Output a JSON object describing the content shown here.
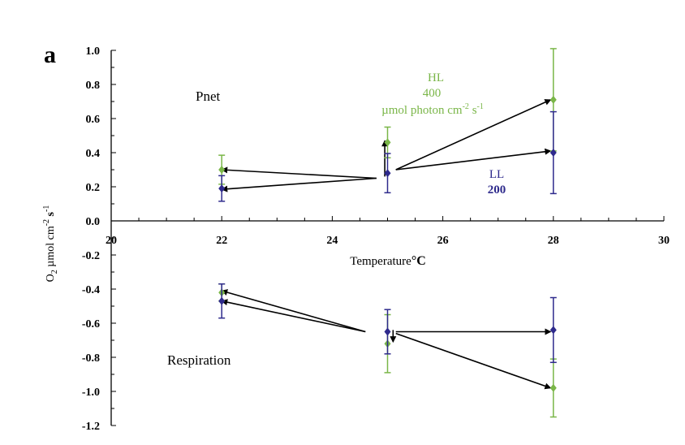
{
  "panel_label": "a",
  "colors": {
    "axis": "#000000",
    "HL": "#7ab648",
    "LL": "#2e2a8c",
    "arrow": "#000000"
  },
  "annotations": {
    "pnet": "Pnet",
    "respiration": "Respiration",
    "hl_title": "HL",
    "hl_value": "400",
    "hl_unit": "µmol photon cm",
    "hl_unit_exp1": "-2",
    "hl_unit_s": " s",
    "hl_unit_exp2": "-1",
    "ll_title": "LL",
    "ll_value": "200"
  },
  "chart_data": {
    "type": "scatter",
    "xlabel": "Temperature°C",
    "ylabel": "O2 µmol cm-2 s-1",
    "ylabel_parts": {
      "o": "O",
      "sub2": "2",
      "mid": " µmol cm",
      "exp1": "-2",
      "s": " s",
      "exp2": "-1"
    },
    "xlabel_parts": {
      "main": "Temperature",
      "deg": "°C"
    },
    "xlim": [
      20,
      30
    ],
    "ylim": [
      -1.2,
      1.0
    ],
    "xticks": [
      20,
      22,
      24,
      26,
      28,
      30
    ],
    "yticks": [
      1.0,
      0.8,
      0.6,
      0.4,
      0.2,
      0.0,
      -0.2,
      -0.4,
      -0.6,
      -0.8,
      -1.0,
      -1.2
    ],
    "xtick_labels": [
      "20",
      "22",
      "24",
      "26",
      "28",
      "30"
    ],
    "ytick_labels": [
      "1.0",
      "0.8",
      "0.6",
      "0.4",
      "0.2",
      "0.0",
      "-0.2",
      "-0.4",
      "-0.6",
      "-0.8",
      "-1.0",
      "-1.2"
    ],
    "grid": false,
    "series": [
      {
        "name": "HL",
        "color": "#7ab648",
        "points": [
          {
            "group": "Pnet",
            "x": 22,
            "y": 0.3,
            "err": 0.085
          },
          {
            "group": "Pnet",
            "x": 25,
            "y": 0.46,
            "err": 0.09
          },
          {
            "group": "Pnet",
            "x": 28,
            "y": 0.71,
            "err": 0.3
          },
          {
            "group": "Respiration",
            "x": 22,
            "y": -0.42,
            "err": 0.05
          },
          {
            "group": "Respiration",
            "x": 25,
            "y": -0.72,
            "err": 0.17
          },
          {
            "group": "Respiration",
            "x": 28,
            "y": -0.98,
            "err": 0.17
          }
        ]
      },
      {
        "name": "LL",
        "color": "#2e2a8c",
        "points": [
          {
            "group": "Pnet",
            "x": 22,
            "y": 0.19,
            "err": 0.075
          },
          {
            "group": "Pnet",
            "x": 25,
            "y": 0.28,
            "err": 0.115
          },
          {
            "group": "Pnet",
            "x": 28,
            "y": 0.4,
            "err": 0.24
          },
          {
            "group": "Respiration",
            "x": 22,
            "y": -0.47,
            "err": 0.1
          },
          {
            "group": "Respiration",
            "x": 25,
            "y": -0.65,
            "err": 0.13
          },
          {
            "group": "Respiration",
            "x": 28,
            "y": -0.64,
            "err": 0.19
          }
        ]
      }
    ],
    "arrows": [
      {
        "from": [
          24.8,
          0.25
        ],
        "to": [
          22.0,
          0.3
        ]
      },
      {
        "from": [
          24.8,
          0.25
        ],
        "to": [
          22.0,
          0.185
        ]
      },
      {
        "from": [
          24.95,
          0.26
        ],
        "to": [
          24.95,
          0.47
        ]
      },
      {
        "from": [
          25.15,
          0.3
        ],
        "to": [
          27.95,
          0.71
        ]
      },
      {
        "from": [
          25.15,
          0.3
        ],
        "to": [
          27.95,
          0.41
        ]
      },
      {
        "from": [
          24.6,
          -0.65
        ],
        "to": [
          22.0,
          -0.41
        ]
      },
      {
        "from": [
          24.6,
          -0.65
        ],
        "to": [
          22.0,
          -0.47
        ]
      },
      {
        "from": [
          25.1,
          -0.64
        ],
        "to": [
          25.1,
          -0.71
        ]
      },
      {
        "from": [
          25.15,
          -0.65
        ],
        "to": [
          27.95,
          -0.65
        ]
      },
      {
        "from": [
          25.15,
          -0.66
        ],
        "to": [
          27.95,
          -0.98
        ]
      }
    ]
  }
}
